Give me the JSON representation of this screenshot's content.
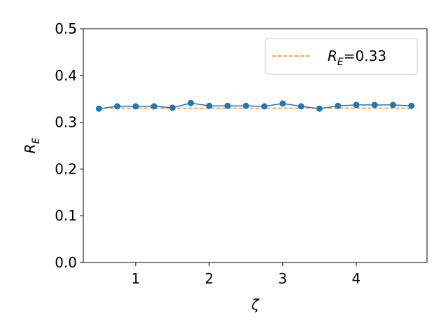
{
  "chart_data": {
    "type": "line",
    "x_label": "ζ",
    "y_label": "RE",
    "x": [
      0.5,
      0.75,
      1.0,
      1.25,
      1.5,
      1.75,
      2.0,
      2.25,
      2.5,
      2.75,
      3.0,
      3.25,
      3.5,
      3.75,
      4.0,
      4.25,
      4.5,
      4.75
    ],
    "series": [
      {
        "color": "#1f77b4",
        "values": [
          0.329,
          0.334,
          0.334,
          0.334,
          0.331,
          0.341,
          0.335,
          0.335,
          0.335,
          0.334,
          0.34,
          0.334,
          0.329,
          0.335,
          0.337,
          0.337,
          0.337,
          0.335
        ]
      }
    ],
    "reference_line": {
      "name": "RE=0.33",
      "value": 0.33,
      "color": "#ff7f0e",
      "style": "dashed"
    },
    "xlim": [
      0.2875,
      4.9625
    ],
    "ylim": [
      0,
      0.5
    ],
    "xticks": [
      1,
      2,
      3,
      4
    ],
    "yticks": [
      {
        "value": 0,
        "label": "0.0"
      },
      0.1,
      0.2,
      0.3,
      0.4,
      0.5
    ],
    "legend": "upper right"
  }
}
